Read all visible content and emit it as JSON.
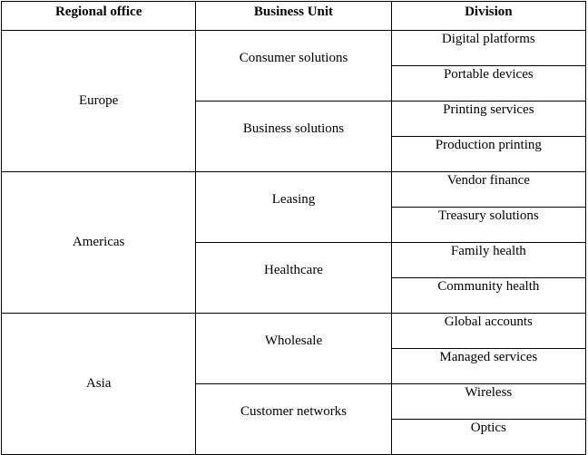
{
  "headers": [
    "Regional office",
    "Business Unit",
    "Division"
  ],
  "regions": [
    {
      "name": "Europe",
      "units": [
        {
          "name": "Consumer solutions",
          "divisions": [
            "Digital platforms",
            "Portable devices"
          ]
        },
        {
          "name": "Business solutions",
          "divisions": [
            "Printing services",
            "Production printing"
          ]
        }
      ]
    },
    {
      "name": "Americas",
      "units": [
        {
          "name": "Leasing",
          "divisions": [
            "Vendor finance",
            "Treasury solutions"
          ]
        },
        {
          "name": "Healthcare",
          "divisions": [
            "Family health",
            "Community health"
          ]
        }
      ]
    },
    {
      "name": "Asia",
      "units": [
        {
          "name": "Wholesale",
          "divisions": [
            "Global accounts",
            "Managed services"
          ]
        },
        {
          "name": "Customer networks",
          "divisions": [
            "Wireless",
            "Optics"
          ]
        }
      ]
    }
  ]
}
